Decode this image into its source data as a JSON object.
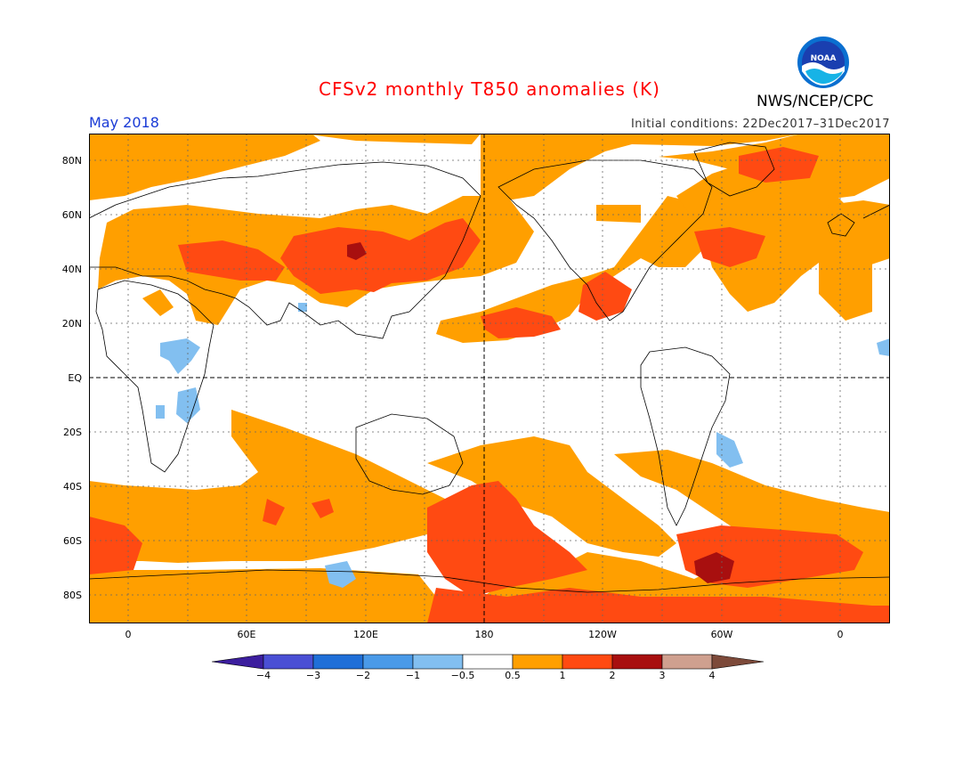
{
  "header": {
    "title": "CFSv2 monthly T850 anomalies (K)",
    "valid_month": "May 2018",
    "initial_conditions": "Initial conditions: 22Dec2017–31Dec2017",
    "agency": "NWS/NCEP/CPC",
    "logo_text": "NOAA",
    "logo_icon": "noaa-logo-icon"
  },
  "map": {
    "lat_labels": [
      "80N",
      "60N",
      "40N",
      "20N",
      "EQ",
      "20S",
      "40S",
      "60S",
      "80S"
    ],
    "lon_labels": [
      "0",
      "60E",
      "120E",
      "180",
      "120W",
      "60W",
      "0"
    ]
  },
  "colorbar": {
    "labels": [
      "−4",
      "−3",
      "−2",
      "−1",
      "−0.5",
      "0.5",
      "1",
      "2",
      "3",
      "4"
    ],
    "colors": [
      "#3c1e9e",
      "#4a4fd4",
      "#1f6fd8",
      "#4a9ae8",
      "#82bff0",
      "#ffffff",
      "#ff9f00",
      "#ff4a12",
      "#a80f0f",
      "#cfa08f",
      "#7d4a3a"
    ]
  },
  "colors": {
    "weak_warm": "#ff9f00",
    "mod_warm": "#ff4a12",
    "strong_warm": "#a80f0f",
    "weak_cool": "#82bff0",
    "title": "#ff0000",
    "month": "#1a3bd6"
  }
}
